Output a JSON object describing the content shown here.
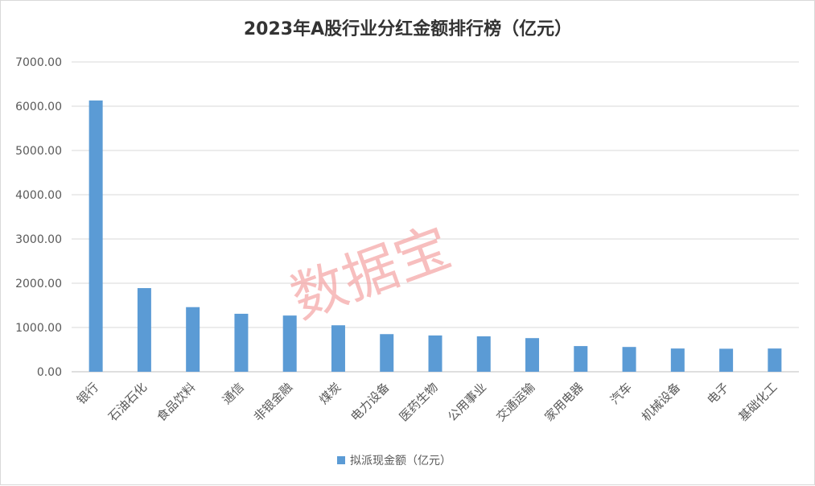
{
  "chart_data": {
    "type": "bar",
    "title": "2023年A股行业分红金额排行榜（亿元）",
    "categories": [
      "银行",
      "石油石化",
      "食品饮料",
      "通信",
      "非银金融",
      "煤炭",
      "电力设备",
      "医药生物",
      "公用事业",
      "交通运输",
      "家用电器",
      "汽车",
      "机械设备",
      "电子",
      "基础化工"
    ],
    "series": [
      {
        "name": "拟派现金额（亿元）",
        "values": [
          6130,
          1890,
          1460,
          1310,
          1270,
          1050,
          850,
          820,
          800,
          760,
          580,
          560,
          525,
          520,
          525
        ]
      }
    ],
    "ylim": [
      0,
      7000
    ],
    "yticks": [
      "0.00",
      "1000.00",
      "2000.00",
      "3000.00",
      "4000.00",
      "5000.00",
      "6000.00",
      "7000.00"
    ],
    "grid": true,
    "legend_position": "bottom",
    "bar_color": "#5b9bd5",
    "watermark": "数据宝"
  }
}
